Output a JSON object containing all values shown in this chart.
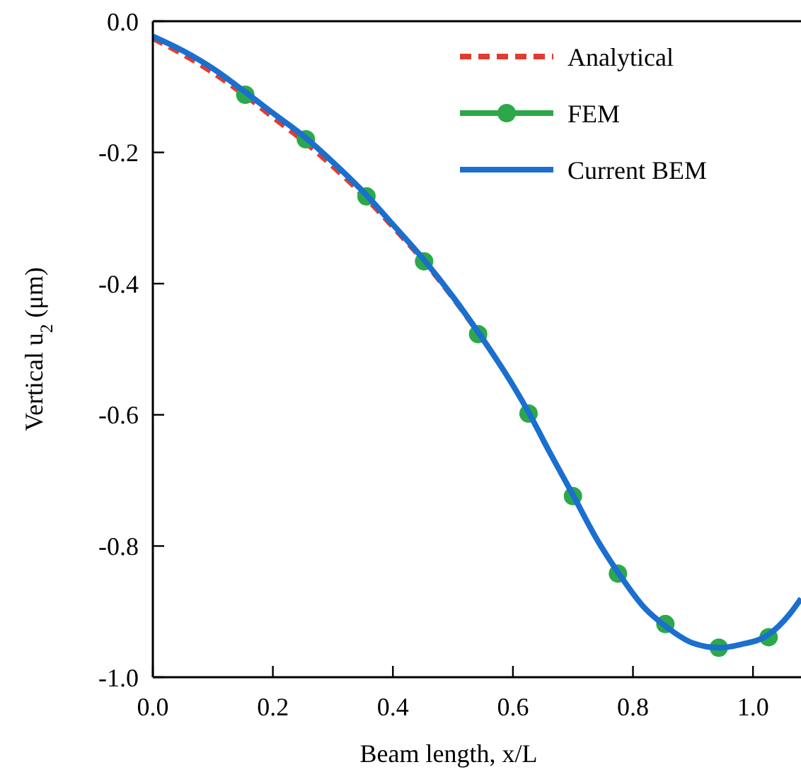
{
  "chart_data": {
    "type": "line",
    "xlabel": "Beam length, x/L",
    "ylabel": "Vertical u$_{2}$ (μm)",
    "xlim": [
      0,
      1.08
    ],
    "ylim": [
      -1,
      0
    ],
    "xticks": [
      {
        "value": 0,
        "label": "0.0"
      },
      0.2,
      0.4,
      0.6,
      0.8,
      {
        "value": 1,
        "label": "1.0"
      }
    ],
    "yticks": [
      {
        "value": -1,
        "label": "-1.0"
      },
      -0.8,
      -0.6,
      -0.4,
      -0.2,
      {
        "value": 0,
        "label": "0.0"
      }
    ],
    "legend": "top right",
    "grid": false,
    "series": [
      {
        "name": "Analytical",
        "color": "#e03c31",
        "line_style": "dashed",
        "marker": "none",
        "x": [
          0,
          0.05,
          0.1,
          0.154,
          0.2,
          0.255,
          0.3,
          0.356,
          0.4,
          0.452,
          0.5,
          0.542
        ],
        "values": [
          -0.026,
          -0.05,
          -0.078,
          -0.113,
          -0.146,
          -0.185,
          -0.221,
          -0.27,
          -0.313,
          -0.366,
          -0.421,
          -0.474
        ]
      },
      {
        "name": "FEM",
        "color": "#2ca84a",
        "line_style": "solid",
        "marker": "circle",
        "type": "scatter",
        "x": [
          0.154,
          0.255,
          0.356,
          0.452,
          0.542,
          0.626,
          0.7,
          0.775,
          0.854,
          0.943,
          1.026
        ],
        "values": [
          -0.112,
          -0.18,
          -0.267,
          -0.366,
          -0.477,
          -0.598,
          -0.724,
          -0.842,
          -0.919,
          -0.955,
          -0.939
        ]
      },
      {
        "name": "Current BEM",
        "color": "#1a6fcf",
        "line_style": "solid",
        "marker": "none",
        "x": [
          0,
          0.05,
          0.1,
          0.154,
          0.2,
          0.255,
          0.3,
          0.356,
          0.4,
          0.452,
          0.5,
          0.542,
          0.6,
          0.626,
          0.66,
          0.7,
          0.74,
          0.775,
          0.82,
          0.854,
          0.9,
          0.943,
          0.98,
          1.026,
          1.06,
          1.08
        ],
        "values": [
          -0.023,
          -0.045,
          -0.072,
          -0.108,
          -0.14,
          -0.178,
          -0.215,
          -0.265,
          -0.31,
          -0.364,
          -0.42,
          -0.474,
          -0.555,
          -0.596,
          -0.655,
          -0.722,
          -0.79,
          -0.84,
          -0.895,
          -0.922,
          -0.948,
          -0.955,
          -0.95,
          -0.935,
          -0.905,
          -0.88
        ]
      }
    ]
  }
}
